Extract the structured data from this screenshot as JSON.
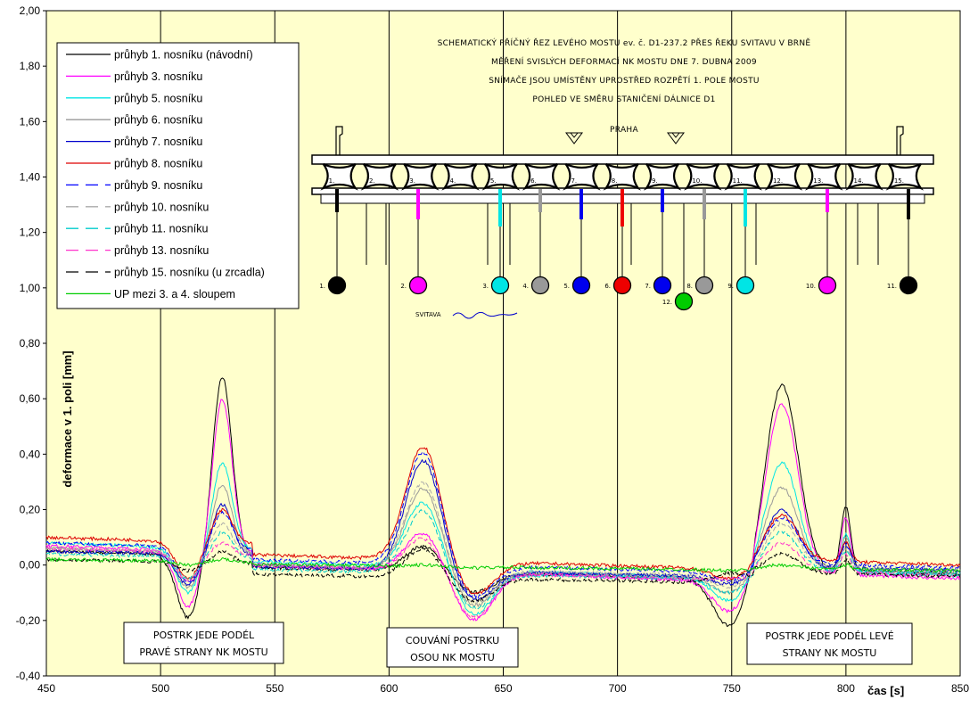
{
  "chart_data": {
    "type": "line",
    "xlabel": "čas [s]",
    "ylabel": "deformace v 1. poli [mm]",
    "xlim": [
      450,
      850
    ],
    "ylim": [
      -0.4,
      2.0
    ],
    "x_ticks": [
      "450",
      "500",
      "550",
      "600",
      "650",
      "700",
      "750",
      "800",
      "850"
    ],
    "y_ticks": [
      "-0,40",
      "-0,20",
      "0,00",
      "0,20",
      "0,40",
      "0,60",
      "0,80",
      "1,00",
      "1,20",
      "1,40",
      "1,60",
      "1,80",
      "2,00"
    ],
    "grid": "vertical",
    "legend_position": "top-left",
    "background": "#ffffcc",
    "series": [
      {
        "name": "průhyb 1. nosníku (návodní)",
        "color": "#000000",
        "dash": "solid",
        "peak1": 0.68,
        "peak2": 0.07,
        "peak3": 0.65,
        "peak4": 0.21,
        "dip1": -0.19,
        "dip2": -0.1,
        "dip3": -0.22,
        "start": 0.05,
        "end": -0.03
      },
      {
        "name": "průhyb 3. nosníku",
        "color": "#ff00ff",
        "dash": "solid",
        "peak1": 0.6,
        "peak2": 0.12,
        "peak3": 0.58,
        "peak4": 0.17,
        "dip1": -0.15,
        "dip2": -0.2,
        "dip3": -0.17,
        "start": 0.07,
        "end": -0.05
      },
      {
        "name": "průhyb 5. nosníku",
        "color": "#00e5e5",
        "dash": "solid",
        "peak1": 0.37,
        "peak2": 0.23,
        "peak3": 0.37,
        "peak4": 0.11,
        "dip1": -0.1,
        "dip2": -0.18,
        "dip3": -0.13,
        "start": 0.08,
        "end": -0.04
      },
      {
        "name": "průhyb 6. nosníku",
        "color": "#999999",
        "dash": "solid",
        "peak1": 0.29,
        "peak2": 0.28,
        "peak3": 0.28,
        "peak4": 0.1,
        "dip1": -0.08,
        "dip2": -0.15,
        "dip3": -0.1,
        "start": 0.06,
        "end": -0.03
      },
      {
        "name": "průhyb 7. nosníku",
        "color": "#0000cc",
        "dash": "solid",
        "peak1": 0.22,
        "peak2": 0.38,
        "peak3": 0.2,
        "peak4": 0.08,
        "dip1": -0.07,
        "dip2": -0.13,
        "dip3": -0.07,
        "start": 0.05,
        "end": -0.02
      },
      {
        "name": "průhyb 8. nosníku",
        "color": "#dd0000",
        "dash": "solid",
        "peak1": 0.2,
        "peak2": 0.43,
        "peak3": 0.18,
        "peak4": 0.08,
        "dip1": -0.05,
        "dip2": -0.11,
        "dip3": -0.05,
        "start": 0.1,
        "end": 0.0
      },
      {
        "name": "průhyb 9. nosníku",
        "color": "#0000ff",
        "dash": "dashed",
        "peak1": 0.19,
        "peak2": 0.41,
        "peak3": 0.17,
        "peak4": 0.07,
        "dip1": -0.06,
        "dip2": -0.12,
        "dip3": -0.06,
        "start": 0.08,
        "end": -0.01
      },
      {
        "name": "průhyb 10. nosníku",
        "color": "#aaaaaa",
        "dash": "dashed",
        "peak1": 0.15,
        "peak2": 0.3,
        "peak3": 0.15,
        "peak4": 0.06,
        "dip1": -0.05,
        "dip2": -0.14,
        "dip3": -0.08,
        "start": 0.06,
        "end": -0.02
      },
      {
        "name": "průhyb 11. nosníku",
        "color": "#00cccc",
        "dash": "dashed",
        "peak1": 0.12,
        "peak2": 0.2,
        "peak3": 0.12,
        "peak4": 0.05,
        "dip1": -0.05,
        "dip2": -0.16,
        "dip3": -0.1,
        "start": 0.04,
        "end": -0.03
      },
      {
        "name": "průhyb 13. nosníku",
        "color": "#ff33cc",
        "dash": "dashed",
        "peak1": 0.08,
        "peak2": 0.1,
        "peak3": 0.08,
        "peak4": 0.04,
        "dip1": -0.06,
        "dip2": -0.19,
        "dip3": -0.05,
        "start": 0.06,
        "end": -0.04
      },
      {
        "name": "průhyb 15. nosníku (u zrcadla)",
        "color": "#000000",
        "dash": "dashed",
        "peak1": 0.05,
        "peak2": 0.06,
        "peak3": 0.04,
        "peak4": 0.02,
        "dip1": -0.02,
        "dip2": -0.13,
        "dip3": -0.03,
        "start": 0.02,
        "end": -0.04
      },
      {
        "name": "UP mezi 3. a 4. sloupem",
        "color": "#00cc00",
        "dash": "solid",
        "peak1": 0.02,
        "peak2": 0.0,
        "peak3": 0.0,
        "peak4": 0.0,
        "dip1": 0.0,
        "dip2": -0.01,
        "dip3": -0.02,
        "start": 0.02,
        "end": -0.02
      }
    ],
    "annotations": [
      {
        "lines": [
          "POSTRK JEDE PODÉL",
          "PRAVÉ STRANY NK MOSTU"
        ]
      },
      {
        "lines": [
          "COUVÁNÍ POSTRKU",
          "OSOU NK MOSTU"
        ]
      },
      {
        "lines": [
          "POSTRK JEDE PODÉL LEVÉ",
          "STRANY NK MOSTU"
        ]
      }
    ]
  },
  "schematic": {
    "title_lines": [
      "SCHEMATICKÝ PŘÍČNÝ ŘEZ LEVÉHO MOSTU ev. č. D1-237.2 PŘES ŘEKU SVITAVU V BRNĚ",
      "MĚŘENÍ SVISLÝCH DEFORMACÍ NK MOSTU DNE 7. DUBNA 2009",
      "SNÍMAČE JSOU UMÍSTĚNY UPROSTŘED ROZPĚTÍ 1. POLE MOSTU",
      "POHLED VE SMĚRU STANIČENÍ DÁLNICE D1"
    ],
    "direction_label": "PRAHA",
    "river_label": "SVITAVA",
    "beam_numbers": [
      "1.",
      "2.",
      "3.",
      "4.",
      "5.",
      "6.",
      "7.",
      "8.",
      "9.",
      "10.",
      "11.",
      "12.",
      "13.",
      "14.",
      "15."
    ],
    "sensors": [
      {
        "label": "1.",
        "color": "#000000"
      },
      {
        "label": "2.",
        "color": "#ff00ff"
      },
      {
        "label": "3.",
        "color": "#00e5e5"
      },
      {
        "label": "4.",
        "color": "#999999"
      },
      {
        "label": "5.",
        "color": "#0000ee"
      },
      {
        "label": "6.",
        "color": "#ee0000"
      },
      {
        "label": "7.",
        "color": "#0000ee"
      },
      {
        "label": "8.",
        "color": "#999999"
      },
      {
        "label": "9.",
        "color": "#00e5e5"
      },
      {
        "label": "10.",
        "color": "#ff00ff"
      },
      {
        "label": "11.",
        "color": "#000000"
      },
      {
        "label": "12.",
        "color": "#00cc00"
      }
    ]
  }
}
